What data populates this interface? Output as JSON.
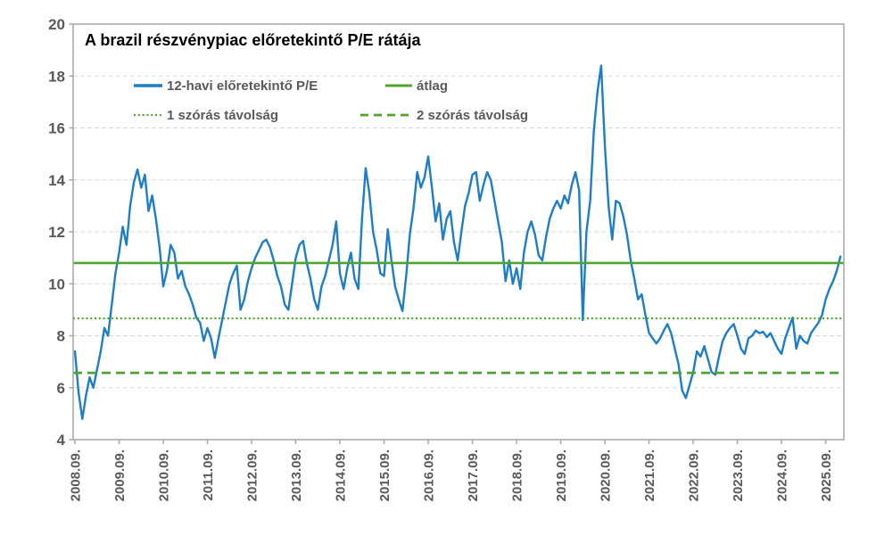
{
  "chart_data": {
    "type": "line",
    "title": "A brazil részvénypiac előretekintő P/E rátája",
    "ylim": [
      4,
      20
    ],
    "y_tick_labels": [
      "20",
      "18",
      "16",
      "14",
      "12",
      "10",
      "8",
      "6",
      "4"
    ],
    "y_gridlines": [
      18,
      16,
      14,
      12,
      10,
      8,
      6
    ],
    "x_tick_labels": [
      "2008.09.",
      "2009.09.",
      "2010.09.",
      "2011.09.",
      "2012.09.",
      "2013.09.",
      "2014.09.",
      "2015.09.",
      "2016.09.",
      "2017.09.",
      "2018.09.",
      "2019.09.",
      "2020.09.",
      "2021.09.",
      "2022.09.",
      "2023.09.",
      "2024.09.",
      "2025.09."
    ],
    "x_tick_interval_months": 12,
    "grid": "horizontal dashed",
    "legend_position": "inside top-left, two columns",
    "legend": [
      {
        "label": "12-havi előretekintő P/E",
        "style": "solid",
        "color": "#1d7ec6"
      },
      {
        "label": "átlag",
        "style": "solid",
        "color": "#4fa32e"
      },
      {
        "label": "1 szórás távolság",
        "style": "dotted",
        "color": "#4fa32e"
      },
      {
        "label": "2 szórás távolság",
        "style": "dashed",
        "color": "#4fa32e"
      }
    ],
    "reference_lines": [
      {
        "name": "átlag",
        "value": 10.8,
        "style": "solid"
      },
      {
        "name": "1 szórás távolság",
        "value": 8.67,
        "style": "dotted"
      },
      {
        "name": "2 szórás távolság",
        "value": 6.57,
        "style": "dashed"
      }
    ],
    "series": [
      {
        "name": "12-havi előretekintő P/E",
        "start": "2008.09",
        "frequency": "monthly",
        "values": [
          7.4,
          5.8,
          4.8,
          5.7,
          6.4,
          6.0,
          6.7,
          7.4,
          8.3,
          8.0,
          9.2,
          10.4,
          11.2,
          12.2,
          11.5,
          13.0,
          13.9,
          14.4,
          13.7,
          14.2,
          12.8,
          13.4,
          12.5,
          11.4,
          9.9,
          10.5,
          11.5,
          11.2,
          10.2,
          10.5,
          9.9,
          9.6,
          9.2,
          8.7,
          8.5,
          7.8,
          8.3,
          7.9,
          7.15,
          7.9,
          8.6,
          9.3,
          10.0,
          10.4,
          10.7,
          9.0,
          9.4,
          10.1,
          10.6,
          11.0,
          11.3,
          11.6,
          11.7,
          11.4,
          10.9,
          10.3,
          9.9,
          9.2,
          9.0,
          10.0,
          11.0,
          11.5,
          11.65,
          10.8,
          10.2,
          9.4,
          9.0,
          9.9,
          10.3,
          10.9,
          11.5,
          12.4,
          10.4,
          9.8,
          10.6,
          11.2,
          10.2,
          9.8,
          12.5,
          14.45,
          13.5,
          12.0,
          11.3,
          10.4,
          10.3,
          12.1,
          10.9,
          9.9,
          9.4,
          8.95,
          10.3,
          11.9,
          12.9,
          14.3,
          13.7,
          14.1,
          14.9,
          13.7,
          12.4,
          13.1,
          11.7,
          12.5,
          12.8,
          11.6,
          10.9,
          12.0,
          13.0,
          13.5,
          14.2,
          14.3,
          13.2,
          13.8,
          14.3,
          14.0,
          13.2,
          12.4,
          11.6,
          10.1,
          10.9,
          10.0,
          10.6,
          9.8,
          11.2,
          12.0,
          12.4,
          11.9,
          11.1,
          10.9,
          11.8,
          12.5,
          12.9,
          13.2,
          12.9,
          13.4,
          13.1,
          13.8,
          14.3,
          13.6,
          8.6,
          12.0,
          13.2,
          15.9,
          17.4,
          18.4,
          15.3,
          13.0,
          11.7,
          13.2,
          13.1,
          12.6,
          11.9,
          10.9,
          10.2,
          9.4,
          9.6,
          8.8,
          8.1,
          7.9,
          7.7,
          7.9,
          8.2,
          8.45,
          8.1,
          7.5,
          6.9,
          5.9,
          5.6,
          6.1,
          6.6,
          7.4,
          7.2,
          7.6,
          7.1,
          6.6,
          6.5,
          7.2,
          7.8,
          8.1,
          8.3,
          8.45,
          8.0,
          7.5,
          7.3,
          7.9,
          8.0,
          8.2,
          8.1,
          8.15,
          7.95,
          8.1,
          7.8,
          7.5,
          7.3,
          7.9,
          8.3,
          8.7,
          7.5,
          8.0,
          7.8,
          7.7,
          8.1,
          8.3,
          8.5,
          8.8,
          9.4,
          9.8,
          10.1,
          10.5,
          11.05
        ]
      }
    ],
    "colors": {
      "series_blue": "#1d7ec6",
      "reference_green": "#4fa32e",
      "grid": "#d9d9d9",
      "axis": "#a6a6a6",
      "tick_text": "#595959",
      "title_text": "#000000"
    }
  }
}
